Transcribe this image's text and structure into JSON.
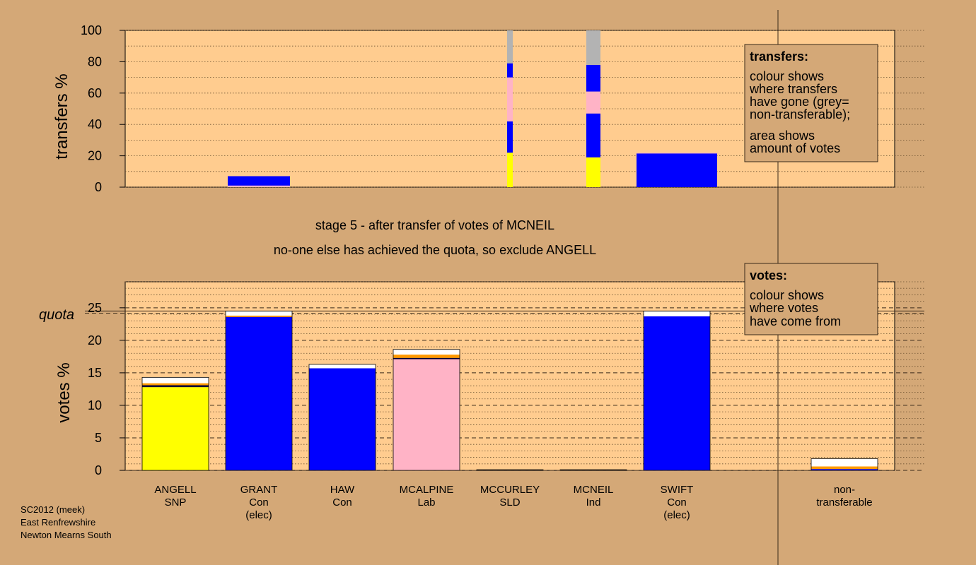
{
  "stage": {
    "line1": "stage 5 - after transfer of votes of MCNEIL",
    "line2": "no-one else has achieved the quota, so exclude ANGELL"
  },
  "legend_transfers": {
    "title": "transfers:",
    "lines": [
      "colour shows",
      "where transfers",
      "have gone (grey=",
      "non-transferable);"
    ],
    "lines2": [
      "area shows",
      "amount of votes"
    ]
  },
  "legend_votes": {
    "title": "votes:",
    "lines": [
      "colour shows",
      "where votes",
      "have come from"
    ]
  },
  "footer": {
    "lines": [
      "SC2012 (meek)",
      "East Renfrewshire",
      "Newton Mearns South"
    ]
  },
  "colors": {
    "background": "#d4a877",
    "panel": "#ffcc8f",
    "snp": "#ffff00",
    "con": "#0000ff",
    "lab": "#ffb3c6",
    "nontransferable": "#b3b3b3",
    "white": "#ffffff",
    "orange": "#ff9900",
    "dark": "#000033"
  },
  "chart_data": [
    {
      "type": "bar",
      "stacked": true,
      "ylabel": "transfers %",
      "ylim": [
        0,
        100
      ],
      "yticks": [
        0,
        20,
        40,
        60,
        80,
        100
      ],
      "grid": true,
      "categories": [
        "ANGELL",
        "GRANT",
        "HAW",
        "MCALPINE",
        "MCCURLEY",
        "MCNEIL",
        "SWIFT",
        "",
        "non-transferable"
      ],
      "bars": [
        {
          "category": "GRANT",
          "width": "medium",
          "segments": [
            {
              "color": "#ffb3c6",
              "value": 1
            },
            {
              "color": "#0000ff",
              "value": 6
            }
          ]
        },
        {
          "category": "MCCURLEY",
          "width": "narrow",
          "segments": [
            {
              "color": "#ffff00",
              "value": 22
            },
            {
              "color": "#0000ff",
              "value": 20
            },
            {
              "color": "#ffb3c6",
              "value": 28
            },
            {
              "color": "#0000ff",
              "value": 9
            },
            {
              "color": "#b3b3b3",
              "value": 21
            }
          ]
        },
        {
          "category": "MCNEIL",
          "width": "wide",
          "segments": [
            {
              "color": "#ffff00",
              "value": 19
            },
            {
              "color": "#0000ff",
              "value": 28
            },
            {
              "color": "#ffb3c6",
              "value": 14
            },
            {
              "color": "#0000ff",
              "value": 17
            },
            {
              "color": "#b3b3b3",
              "value": 22
            }
          ]
        },
        {
          "category": "SWIFT",
          "width": "full",
          "segments": [
            {
              "color": "#0000ff",
              "value": 21.5
            },
            {
              "color": "#ffb3c6",
              "value": 0.5
            }
          ]
        }
      ]
    },
    {
      "type": "bar",
      "stacked": true,
      "ylabel": "votes %",
      "ylim": [
        0,
        29
      ],
      "yticks": [
        0,
        5,
        10,
        15,
        20,
        25
      ],
      "quota": 24.5,
      "quota_label": "quota",
      "grid": true,
      "candidates": [
        {
          "name": "ANGELL",
          "party": "SNP",
          "note": "",
          "segments": [
            {
              "color": "#ffff00",
              "value": 12.8
            },
            {
              "color": "#000033",
              "value": 0.3
            },
            {
              "color": "#ff9900",
              "value": 0.3
            },
            {
              "color": "#ffffff",
              "value": 0.9
            }
          ]
        },
        {
          "name": "GRANT",
          "party": "Con",
          "note": "(elec)",
          "segments": [
            {
              "color": "#0000ff",
              "value": 23.6
            },
            {
              "color": "#ff9900",
              "value": 0.2
            },
            {
              "color": "#ffffff",
              "value": 0.7
            }
          ]
        },
        {
          "name": "HAW",
          "party": "Con",
          "note": "",
          "segments": [
            {
              "color": "#0000ff",
              "value": 15.7
            },
            {
              "color": "#ffffff",
              "value": 0.6
            }
          ]
        },
        {
          "name": "MCALPINE",
          "party": "Lab",
          "note": "",
          "segments": [
            {
              "color": "#ffb3c6",
              "value": 17.1
            },
            {
              "color": "#000033",
              "value": 0.2
            },
            {
              "color": "#ff9900",
              "value": 0.5
            },
            {
              "color": "#ffffff",
              "value": 0.8
            }
          ]
        },
        {
          "name": "MCCURLEY",
          "party": "SLD",
          "note": "",
          "segments": [
            {
              "color": "#000033",
              "value": 0.1
            }
          ]
        },
        {
          "name": "MCNEIL",
          "party": "Ind",
          "note": "",
          "segments": [
            {
              "color": "#000033",
              "value": 0.1
            }
          ]
        },
        {
          "name": "SWIFT",
          "party": "Con",
          "note": "(elec)",
          "segments": [
            {
              "color": "#0000ff",
              "value": 23.7
            },
            {
              "color": "#ffffff",
              "value": 0.8
            }
          ]
        },
        {
          "name": "non-",
          "party": "transferable",
          "note": "",
          "segments": [
            {
              "color": "#0000ff",
              "value": 0.2
            },
            {
              "color": "#ff9900",
              "value": 0.4
            },
            {
              "color": "#ffffff",
              "value": 1.2
            }
          ]
        }
      ]
    }
  ]
}
